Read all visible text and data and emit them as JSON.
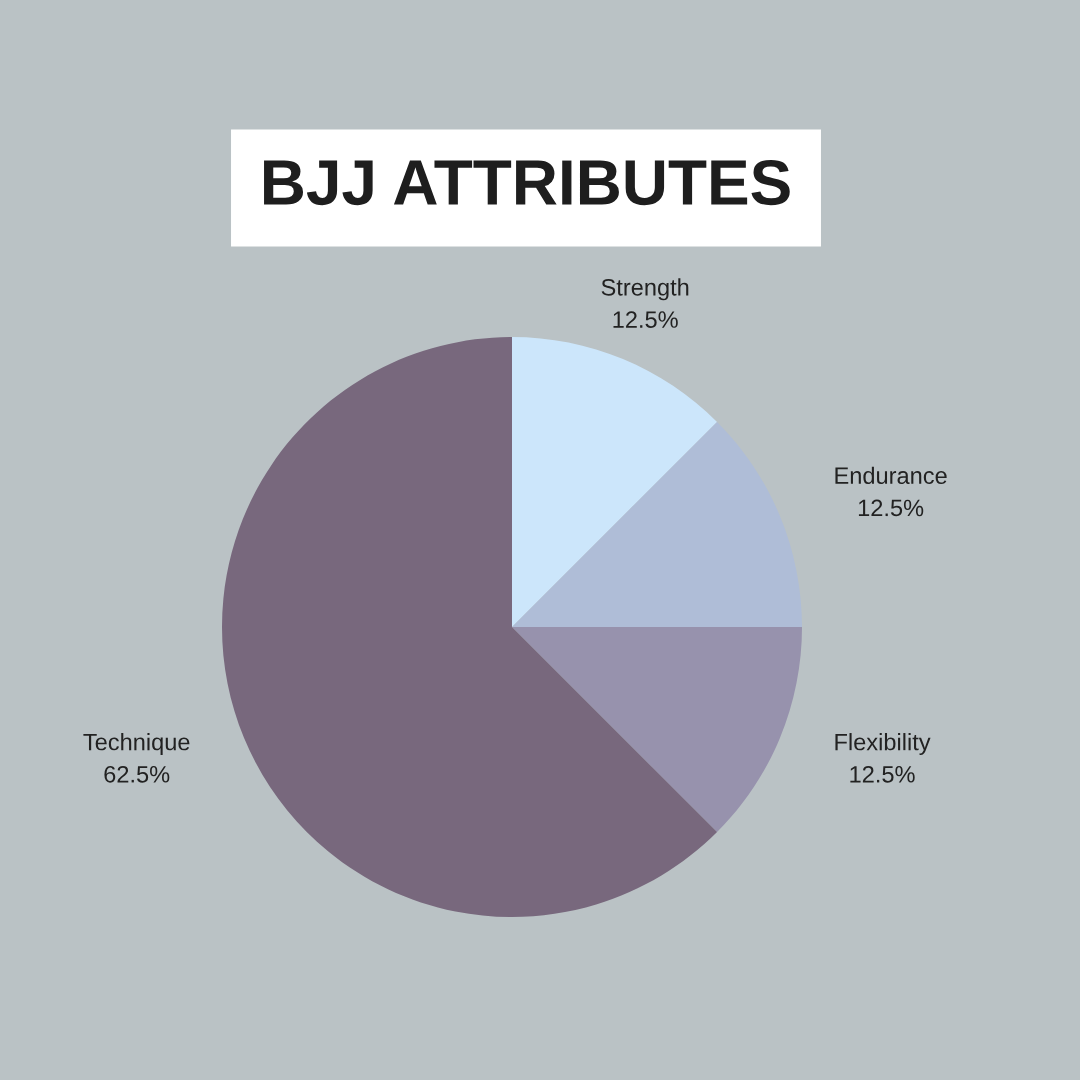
{
  "chart_data": {
    "type": "pie",
    "title": "BJJ ATTRIBUTES",
    "categories": [
      "Strength",
      "Endurance",
      "Flexibility",
      "Technique"
    ],
    "values": [
      12.5,
      12.5,
      12.5,
      62.5
    ],
    "value_labels": [
      "12.5%",
      "12.5%",
      "12.5%",
      "62.5%"
    ],
    "colors": [
      "#cce6fb",
      "#afbdd7",
      "#9792ad",
      "#78687d"
    ],
    "legend": false
  }
}
